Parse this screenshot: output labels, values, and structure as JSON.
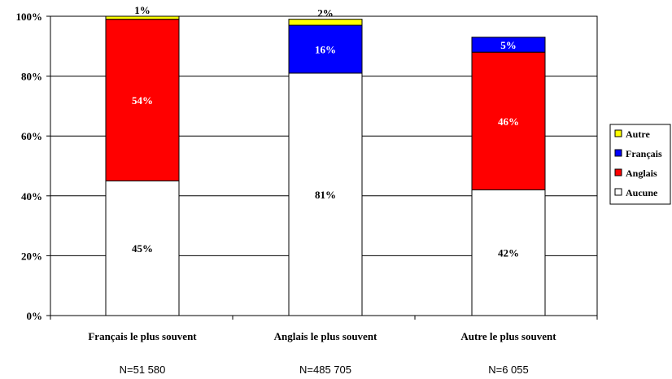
{
  "chart_data": {
    "type": "bar",
    "stacked": true,
    "normalized": true,
    "categories": [
      "Français le plus souvent",
      "Anglais le plus souvent",
      "Autre le plus souvent"
    ],
    "category_notes": [
      "N=51 580",
      "N=485 705",
      "N=6 055"
    ],
    "series": [
      {
        "name": "Aucune",
        "color": "#ffffff",
        "values": [
          45,
          81,
          42
        ],
        "labels": [
          "45%",
          "81%",
          "42%"
        ]
      },
      {
        "name": "Anglais",
        "color": "#ff0000",
        "values": [
          54,
          0,
          46
        ],
        "labels": [
          "54%",
          "",
          "46%"
        ]
      },
      {
        "name": "Français",
        "color": "#0000ff",
        "values": [
          0,
          16,
          5
        ],
        "labels": [
          "",
          "16%",
          "5%"
        ]
      },
      {
        "name": "Autre",
        "color": "#ffff00",
        "values": [
          1,
          2,
          0
        ],
        "labels": [
          "1%",
          "2%",
          ""
        ]
      }
    ],
    "legend_order": [
      "Autre",
      "Français",
      "Anglais",
      "Aucune"
    ],
    "ylim": [
      0,
      100
    ],
    "yticks": [
      "0%",
      "20%",
      "40%",
      "60%",
      "80%",
      "100%"
    ],
    "grid": true,
    "legend_position": "right"
  }
}
